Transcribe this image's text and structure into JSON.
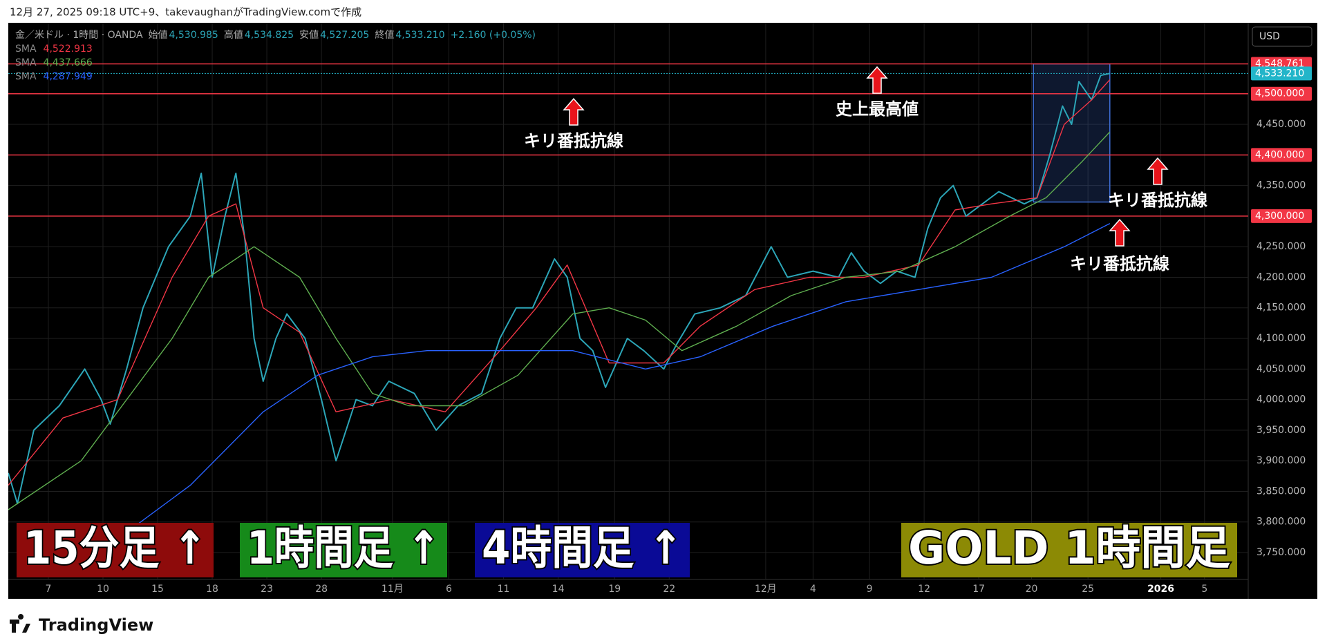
{
  "header": {
    "caption": "12月 27, 2025 09:18 UTC+9、takevaughanがTradingView.comで作成",
    "currency": "USD",
    "footer_logo": "TradingView"
  },
  "chart_data": {
    "type": "line",
    "legend": {
      "ohlc": [
        {
          "label": "始値",
          "value": "4,530.985"
        },
        {
          "label": "高値",
          "value": "4,534.825"
        },
        {
          "label": "安値",
          "value": "4,527.205"
        },
        {
          "label": "終値",
          "value": "4,533.210"
        }
      ],
      "change": "+2.160 (+0.05%)"
    },
    "xlim": [
      0,
      68.1
    ],
    "ylim": [
      3706,
      4616
    ],
    "xticks": [
      {
        "value": 2.2,
        "label": "7"
      },
      {
        "value": 5.2,
        "label": "10"
      },
      {
        "value": 8.2,
        "label": "15"
      },
      {
        "value": 11.2,
        "label": "18"
      },
      {
        "value": 14.2,
        "label": "23"
      },
      {
        "value": 17.2,
        "label": "28"
      },
      {
        "value": 21.1,
        "label": "11月"
      },
      {
        "value": 24.2,
        "label": "6"
      },
      {
        "value": 27.2,
        "label": "11"
      },
      {
        "value": 30.2,
        "label": "14"
      },
      {
        "value": 33.3,
        "label": "19"
      },
      {
        "value": 36.3,
        "label": "22"
      },
      {
        "value": 41.6,
        "label": "12月"
      },
      {
        "value": 44.2,
        "label": "4"
      },
      {
        "value": 47.3,
        "label": "9"
      },
      {
        "value": 50.3,
        "label": "12"
      },
      {
        "value": 53.3,
        "label": "17"
      },
      {
        "value": 56.2,
        "label": "20"
      },
      {
        "value": 59.3,
        "label": "25"
      },
      {
        "value": 63.3,
        "label": "2026"
      },
      {
        "value": 65.7,
        "label": "5"
      }
    ],
    "yticks": [
      {
        "value": 3750,
        "label": "3,750.000"
      },
      {
        "value": 3800,
        "label": "3,800.000"
      },
      {
        "value": 3850,
        "label": "3,850.000"
      },
      {
        "value": 3900,
        "label": "3,900.000"
      },
      {
        "value": 3950,
        "label": "3,950.000"
      },
      {
        "value": 4000,
        "label": "4,000.000"
      },
      {
        "value": 4050,
        "label": "4,050.000"
      },
      {
        "value": 4100,
        "label": "4,100.000"
      },
      {
        "value": 4150,
        "label": "4,150.000"
      },
      {
        "value": 4200,
        "label": "4,200.000"
      },
      {
        "value": 4250,
        "label": "4,250.000"
      },
      {
        "value": 4350,
        "label": "4,350.000"
      },
      {
        "value": 4450,
        "label": "4,450.000"
      }
    ],
    "grid": true,
    "levels": [
      {
        "value": 4548.761,
        "label": "4,548.761",
        "color": "#f23645",
        "style": "solid"
      },
      {
        "value": 4533.21,
        "label": "4,533.210",
        "color": "#22b5c9",
        "style": "dotted"
      },
      {
        "value": 4500,
        "label": "4,500.000",
        "color": "#f23645",
        "style": "solid"
      },
      {
        "value": 4400,
        "label": "4,400.000",
        "color": "#f23645",
        "style": "solid"
      },
      {
        "value": 4300,
        "label": "4,300.000",
        "color": "#f23645",
        "style": "solid"
      }
    ],
    "box": {
      "x": [
        56.3,
        60.5
      ],
      "y": [
        4323,
        4548.761
      ],
      "color": "#3f6fd8"
    },
    "series": [
      {
        "name": "金／米ドル · 1時間 · OANDA",
        "color": "#2ca6b8",
        "x": [
          0,
          0.5,
          1.4,
          2.8,
          4.2,
          5.1,
          5.6,
          6.5,
          7.4,
          8.8,
          10.0,
          10.6,
          11.2,
          11.9,
          12.5,
          13.0,
          13.5,
          14.0,
          14.7,
          15.3,
          16.3,
          17.2,
          18.0,
          19.1,
          20.0,
          20.9,
          22.3,
          23.5,
          24.7,
          26.0,
          27.0,
          27.9,
          28.8,
          30.0,
          30.7,
          31.4,
          32.1,
          32.8,
          34.0,
          34.9,
          36.0,
          36.7,
          37.7,
          39.1,
          40.5,
          41.9,
          42.8,
          44.2,
          45.6,
          46.3,
          47.0,
          47.9,
          48.8,
          49.8,
          50.5,
          51.2,
          51.9,
          52.6,
          53.5,
          54.4,
          55.8,
          56.5,
          57.2,
          57.9,
          58.4,
          58.8,
          59.5,
          60.0,
          60.5
        ],
        "values": [
          3880,
          3830,
          3950,
          3990,
          4050,
          4000,
          3960,
          4050,
          4150,
          4250,
          4300,
          4370,
          4200,
          4300,
          4370,
          4260,
          4100,
          4030,
          4100,
          4140,
          4100,
          4000,
          3900,
          4000,
          3990,
          4030,
          4010,
          3950,
          3990,
          4010,
          4100,
          4150,
          4150,
          4230,
          4200,
          4100,
          4080,
          4020,
          4100,
          4080,
          4050,
          4090,
          4140,
          4150,
          4170,
          4250,
          4200,
          4210,
          4200,
          4240,
          4210,
          4190,
          4210,
          4200,
          4280,
          4330,
          4350,
          4300,
          4320,
          4340,
          4320,
          4330,
          4400,
          4480,
          4450,
          4520,
          4490,
          4530,
          4533.21
        ]
      },
      {
        "name": "SMA",
        "legend_value": "4,522.913",
        "color": "#f23645",
        "x": [
          0,
          3,
          6,
          9,
          11,
          12.5,
          14,
          16,
          18,
          21,
          24,
          27,
          29,
          30.7,
          33,
          36,
          38,
          41,
          44,
          47,
          50,
          52,
          54,
          56.5,
          58,
          59.5,
          60.5
        ],
        "values": [
          3860,
          3970,
          4000,
          4200,
          4300,
          4320,
          4150,
          4110,
          3980,
          4000,
          3980,
          4080,
          4150,
          4220,
          4060,
          4060,
          4120,
          4180,
          4200,
          4200,
          4220,
          4310,
          4320,
          4330,
          4450,
          4490,
          4522.913
        ]
      },
      {
        "name": "SMA",
        "legend_value": "4,437.666",
        "color": "#5fae4f",
        "x": [
          0,
          4,
          9,
          11,
          13.5,
          16,
          18,
          20,
          22,
          25,
          28,
          31,
          33,
          35,
          37,
          40,
          43,
          46,
          49,
          52,
          55,
          57,
          59,
          60.5
        ],
        "values": [
          3820,
          3900,
          4100,
          4200,
          4250,
          4200,
          4100,
          4010,
          3990,
          3990,
          4040,
          4140,
          4150,
          4130,
          4080,
          4120,
          4170,
          4200,
          4210,
          4250,
          4300,
          4330,
          4390,
          4437.666
        ]
      },
      {
        "name": "SMA",
        "legend_value": "4,287.949",
        "color": "#2962ff",
        "x": [
          5,
          10,
          14,
          17,
          20,
          23,
          27,
          31,
          35,
          38,
          42,
          46,
          50,
          54,
          58,
          60.5
        ],
        "values": [
          3750,
          3860,
          3980,
          4040,
          4070,
          4080,
          4080,
          4080,
          4050,
          4070,
          4120,
          4160,
          4180,
          4200,
          4250,
          4287.949
        ]
      }
    ],
    "annotations": [
      "キリ番抵抗線",
      "史上最高値",
      "キリ番抵抗線",
      "キリ番抵抗線"
    ],
    "banners": [
      {
        "text": "15分足 ↑",
        "color": "#8e0b0b"
      },
      {
        "text": "1時間足 ↑",
        "color": "#168a1a"
      },
      {
        "text": "4時間足 ↑",
        "color": "#0a0a96"
      },
      {
        "text": "GOLD 1時間足",
        "color": "#8c8a05"
      }
    ]
  }
}
